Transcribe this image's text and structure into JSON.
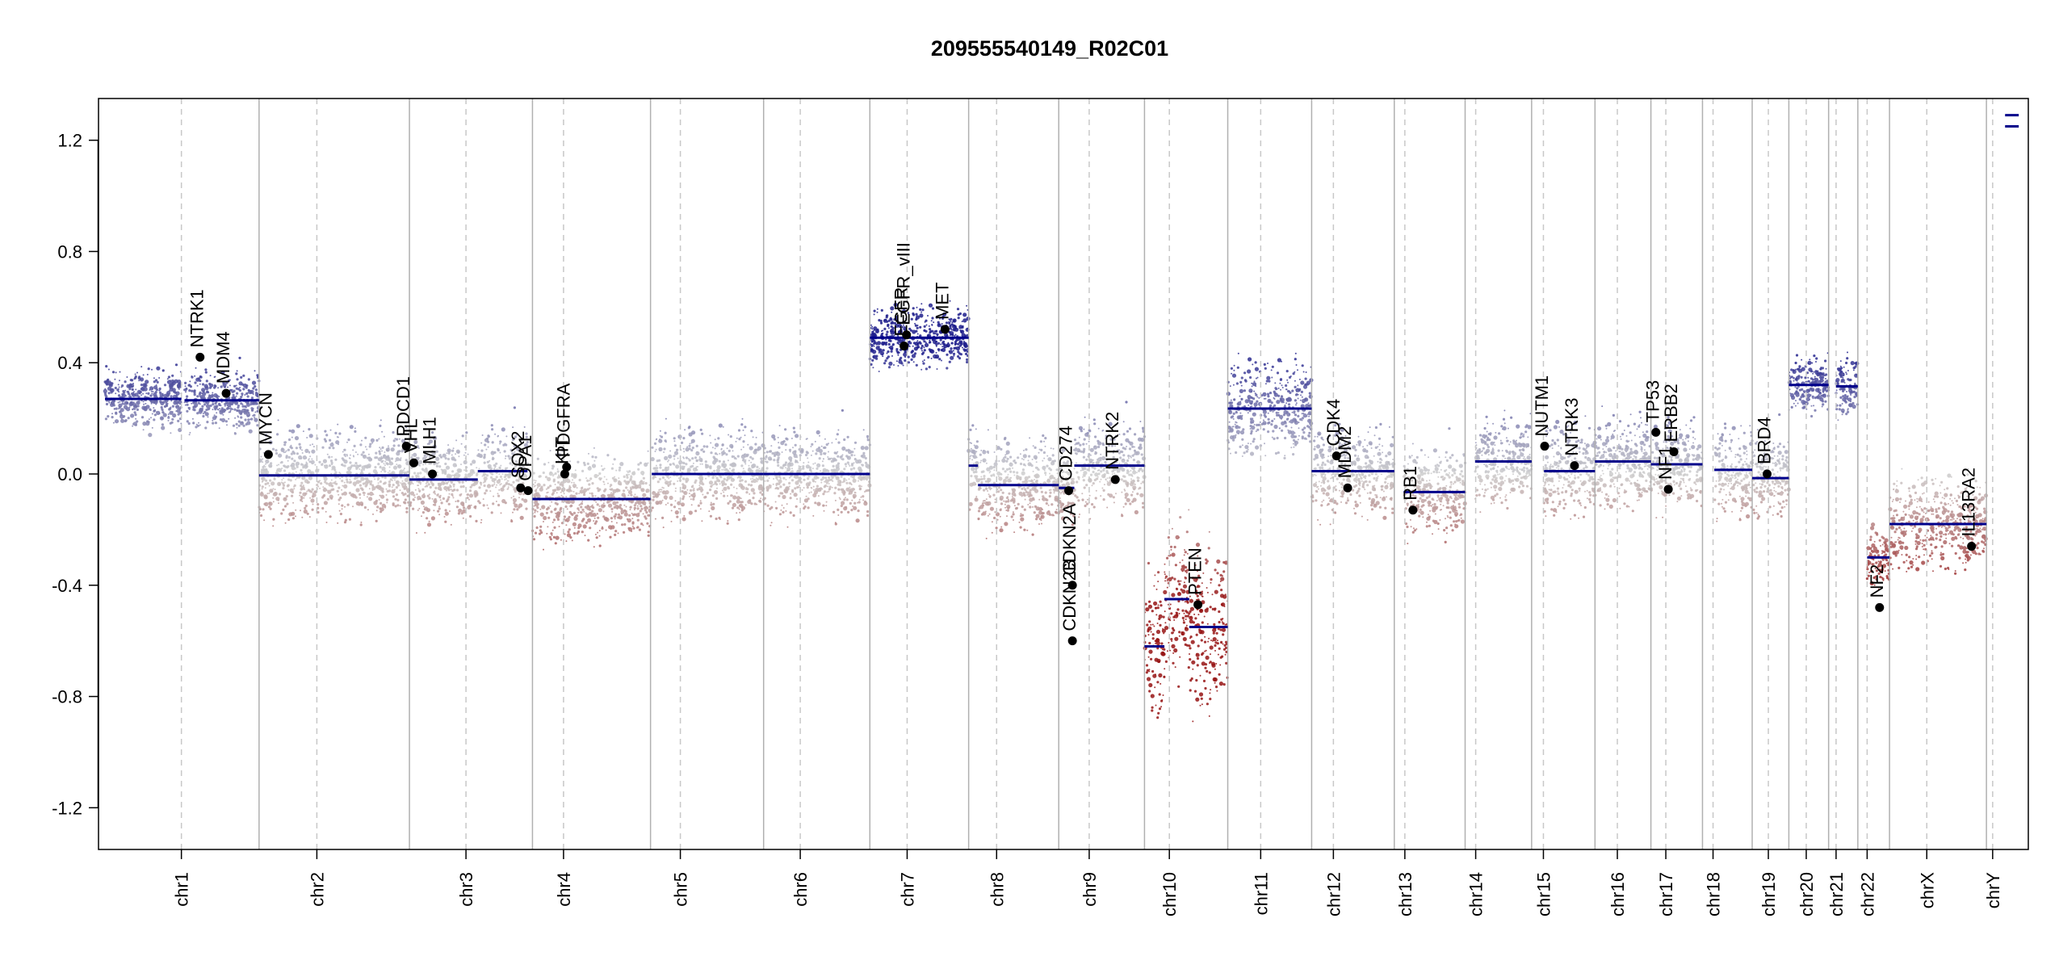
{
  "chart_data": {
    "type": "scatter",
    "title": "209555540149_R02C01",
    "xlabel": "",
    "ylabel": "",
    "ylim": [
      -1.35,
      1.35
    ],
    "yticks": [
      -1.2,
      -0.8,
      -0.4,
      0.0,
      0.4,
      0.8,
      1.2
    ],
    "ytick_labels": [
      "-1.2",
      "-0.8",
      "-0.4",
      "0.0",
      "0.4",
      "0.8",
      "1.2"
    ],
    "grid": false,
    "legend": "none",
    "colors": {
      "gain": "#2a2a9a",
      "neutral": "#c8c8c8",
      "loss": "#9a2020",
      "segment": "#00008b",
      "chrom_boundary": "#b0b0b0",
      "centromere": "#c8c8c8",
      "gene_point": "#000000"
    },
    "chromosomes": [
      {
        "name": "chr1",
        "start": 0,
        "end": 248,
        "centro": 123
      },
      {
        "name": "chr2",
        "start": 248,
        "end": 490,
        "centro": 93
      },
      {
        "name": "chr3",
        "start": 490,
        "end": 688,
        "centro": 91
      },
      {
        "name": "chr4",
        "start": 688,
        "end": 878,
        "centro": 50
      },
      {
        "name": "chr5",
        "start": 878,
        "end": 1060,
        "centro": 48
      },
      {
        "name": "chr6",
        "start": 1060,
        "end": 1231,
        "centro": 59
      },
      {
        "name": "chr7",
        "start": 1231,
        "end": 1390,
        "centro": 60
      },
      {
        "name": "chr8",
        "start": 1390,
        "end": 1535,
        "centro": 45
      },
      {
        "name": "chr9",
        "start": 1535,
        "end": 1673,
        "centro": 49
      },
      {
        "name": "chr10",
        "start": 1673,
        "end": 1807,
        "centro": 40
      },
      {
        "name": "chr11",
        "start": 1807,
        "end": 1942,
        "centro": 53
      },
      {
        "name": "chr12",
        "start": 1942,
        "end": 2075,
        "centro": 35
      },
      {
        "name": "chr13",
        "start": 2075,
        "end": 2189,
        "centro": 17
      },
      {
        "name": "chr14",
        "start": 2189,
        "end": 2296,
        "centro": 17
      },
      {
        "name": "chr15",
        "start": 2296,
        "end": 2398,
        "centro": 19
      },
      {
        "name": "chr16",
        "start": 2398,
        "end": 2488,
        "centro": 36
      },
      {
        "name": "chr17",
        "start": 2488,
        "end": 2571,
        "centro": 24
      },
      {
        "name": "chr18",
        "start": 2571,
        "end": 2651,
        "centro": 17
      },
      {
        "name": "chr19",
        "start": 2651,
        "end": 2710,
        "centro": 26
      },
      {
        "name": "chr20",
        "start": 2710,
        "end": 2774,
        "centro": 28
      },
      {
        "name": "chr21",
        "start": 2774,
        "end": 2821,
        "centro": 12
      },
      {
        "name": "chr22",
        "start": 2821,
        "end": 2872,
        "centro": 15
      },
      {
        "name": "chrX",
        "start": 2872,
        "end": 3028,
        "centro": 60
      },
      {
        "name": "chrY",
        "start": 3028,
        "end": 3085,
        "centro": 10
      }
    ],
    "segments": [
      {
        "chr": "chr1",
        "x0": 0,
        "x1": 123,
        "y": 0.27
      },
      {
        "chr": "chr1",
        "x0": 128,
        "x1": 248,
        "y": 0.265
      },
      {
        "chr": "chr2",
        "x0": 248,
        "x1": 490,
        "y": -0.005
      },
      {
        "chr": "chr3",
        "x0": 490,
        "x1": 600,
        "y": -0.02
      },
      {
        "chr": "chr3",
        "x0": 600,
        "x1": 680,
        "y": 0.01
      },
      {
        "chr": "chr4",
        "x0": 688,
        "x1": 878,
        "y": -0.09
      },
      {
        "chr": "chr5",
        "x0": 880,
        "x1": 1060,
        "y": 0.0
      },
      {
        "chr": "chr6",
        "x0": 1060,
        "x1": 1231,
        "y": 0.0
      },
      {
        "chr": "chr7",
        "x0": 1231,
        "x1": 1390,
        "y": 0.49
      },
      {
        "chr": "chr8",
        "x0": 1390,
        "x1": 1405,
        "y": 0.03
      },
      {
        "chr": "chr8",
        "x0": 1405,
        "x1": 1535,
        "y": -0.04
      },
      {
        "chr": "chr9",
        "x0": 1535,
        "x1": 1560,
        "y": -0.05
      },
      {
        "chr": "chr9",
        "x0": 1560,
        "x1": 1673,
        "y": 0.03
      },
      {
        "chr": "chr10",
        "x0": 1673,
        "x1": 1705,
        "y": -0.62
      },
      {
        "chr": "chr10",
        "x0": 1705,
        "x1": 1745,
        "y": -0.45
      },
      {
        "chr": "chr10",
        "x0": 1745,
        "x1": 1807,
        "y": -0.55
      },
      {
        "chr": "chr11",
        "x0": 1807,
        "x1": 1942,
        "y": 0.235
      },
      {
        "chr": "chr12",
        "x0": 1942,
        "x1": 2075,
        "y": 0.01
      },
      {
        "chr": "chr13",
        "x0": 2090,
        "x1": 2189,
        "y": -0.065
      },
      {
        "chr": "chr14",
        "x0": 2205,
        "x1": 2296,
        "y": 0.045
      },
      {
        "chr": "chr15",
        "x0": 2316,
        "x1": 2398,
        "y": 0.01
      },
      {
        "chr": "chr16",
        "x0": 2398,
        "x1": 2488,
        "y": 0.045
      },
      {
        "chr": "chr17",
        "x0": 2488,
        "x1": 2571,
        "y": 0.035
      },
      {
        "chr": "chr18",
        "x0": 2590,
        "x1": 2651,
        "y": 0.015
      },
      {
        "chr": "chr19",
        "x0": 2651,
        "x1": 2710,
        "y": -0.015
      },
      {
        "chr": "chr20",
        "x0": 2710,
        "x1": 2774,
        "y": 0.32
      },
      {
        "chr": "chr21",
        "x0": 2786,
        "x1": 2821,
        "y": 0.315
      },
      {
        "chr": "chr22",
        "x0": 2836,
        "x1": 2872,
        "y": -0.3
      },
      {
        "chr": "chrX",
        "x0": 2872,
        "x1": 3028,
        "y": -0.18
      },
      {
        "chr": "chrY",
        "x0": 3058,
        "x1": 3080,
        "y": 1.29
      },
      {
        "chr": "chrY",
        "x0": 3058,
        "x1": 3080,
        "y": 1.25
      }
    ],
    "genes": [
      {
        "name": "NTRK1",
        "x": 153,
        "y": 0.42
      },
      {
        "name": "MDM4",
        "x": 195,
        "y": 0.29
      },
      {
        "name": "MYCN",
        "x": 263,
        "y": 0.07
      },
      {
        "name": "PDCD1",
        "x": 485,
        "y": 0.1
      },
      {
        "name": "VHL",
        "x": 497,
        "y": 0.04
      },
      {
        "name": "MLH1",
        "x": 527,
        "y": 0.0
      },
      {
        "name": "SOX2",
        "x": 669,
        "y": -0.05
      },
      {
        "name": "OPA1",
        "x": 681,
        "y": -0.06
      },
      {
        "name": "KIT",
        "x": 740,
        "y": 0.0
      },
      {
        "name": "PDGFRA",
        "x": 743,
        "y": 0.025
      },
      {
        "name": "EGFR",
        "x": 1286,
        "y": 0.46
      },
      {
        "name": "EGFR_vIII",
        "x": 1290,
        "y": 0.5
      },
      {
        "name": "MET",
        "x": 1352,
        "y": 0.52
      },
      {
        "name": "CD274",
        "x": 1551,
        "y": -0.06
      },
      {
        "name": "CDKN2A",
        "x": 1557,
        "y": -0.4
      },
      {
        "name": "CDKN2B",
        "x": 1557,
        "y": -0.6
      },
      {
        "name": "NTRK2",
        "x": 1626,
        "y": -0.02
      },
      {
        "name": "PTEN",
        "x": 1759,
        "y": -0.47
      },
      {
        "name": "CDK4",
        "x": 1982,
        "y": 0.065
      },
      {
        "name": "MDM2",
        "x": 2000,
        "y": -0.05
      },
      {
        "name": "RB1",
        "x": 2105,
        "y": -0.13
      },
      {
        "name": "NUTM1",
        "x": 2317,
        "y": 0.1
      },
      {
        "name": "NTRK3",
        "x": 2365,
        "y": 0.03
      },
      {
        "name": "TP53",
        "x": 2496,
        "y": 0.15
      },
      {
        "name": "ERBB2",
        "x": 2525,
        "y": 0.08
      },
      {
        "name": "NF1",
        "x": 2516,
        "y": -0.055
      },
      {
        "name": "BRD4",
        "x": 2675,
        "y": 0.0
      },
      {
        "name": "NF2",
        "x": 2856,
        "y": -0.48
      },
      {
        "name": "IL13RA2",
        "x": 3004,
        "y": -0.26
      }
    ]
  }
}
